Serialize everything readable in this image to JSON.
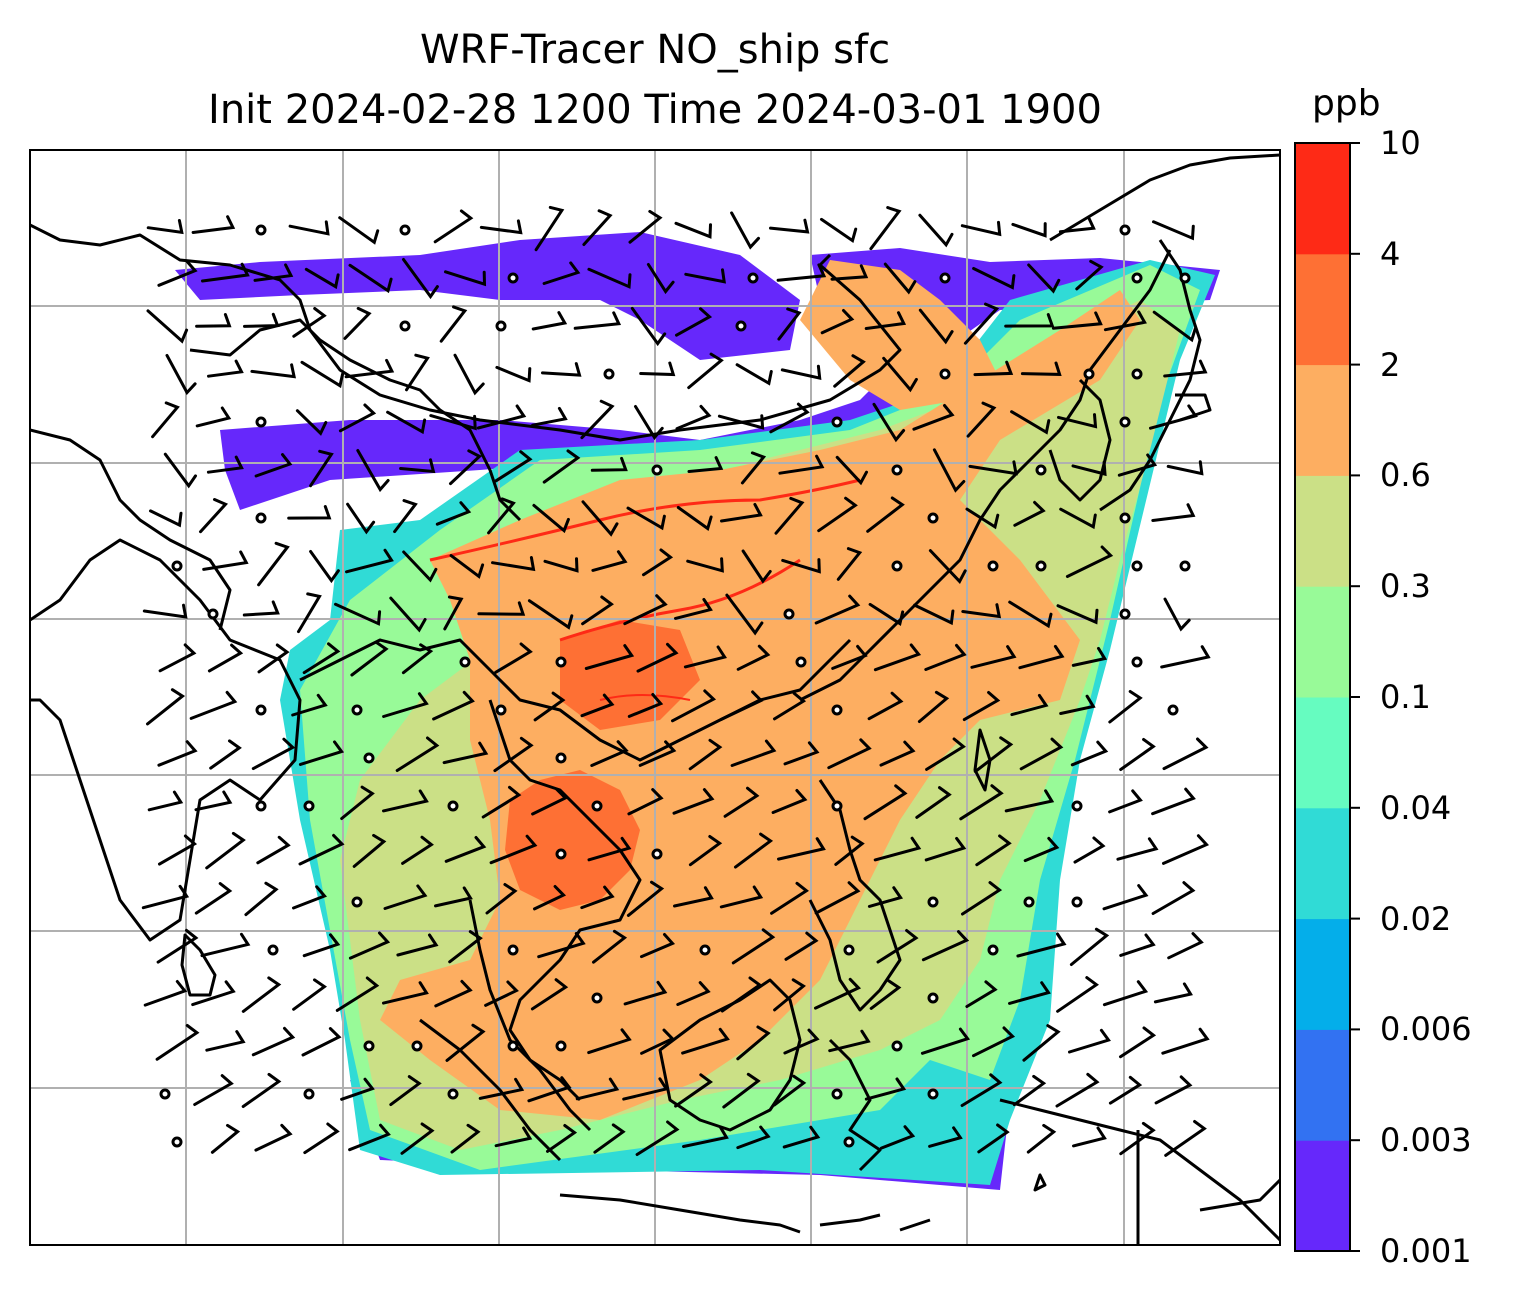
{
  "title_line1": "WRF-Tracer NO_ship sfc",
  "title_line2": "Init 2024-02-28 1200 Time 2024-03-01 1900",
  "colorbar": {
    "unit": "ppb",
    "levels": [
      "0.001",
      "0.003",
      "0.006",
      "0.02",
      "0.04",
      "0.1",
      "0.3",
      "0.6",
      "2",
      "4",
      "10"
    ],
    "colors": [
      "#6628fb",
      "#3272f2",
      "#04aeea",
      "#30dbd6",
      "#66fcc0",
      "#98fa98",
      "#cbe086",
      "#fdae61",
      "#fe7034",
      "#fe2a16"
    ]
  },
  "colors": {
    "background": "#ffffff",
    "grid": "#b0b0b0",
    "coast": "#000000"
  }
}
